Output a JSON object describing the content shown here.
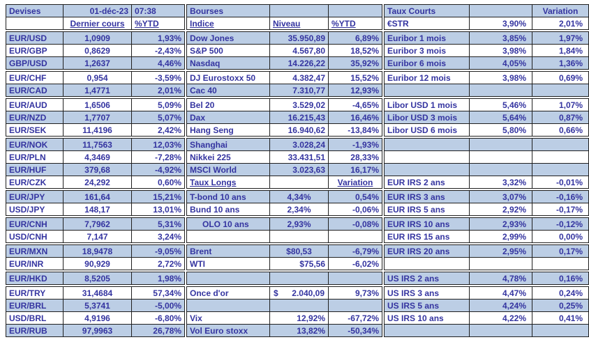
{
  "colors": {
    "shaded_row": "#BCCEE5",
    "text": "#3434A0",
    "border": "#1F1F1F",
    "background": "#FFFFFF"
  },
  "row_group_starts": [
    3,
    6,
    8,
    11,
    15,
    17,
    19,
    21,
    22
  ],
  "tables": {
    "devises": {
      "header": {
        "title": "Devises",
        "date": "01-déc-23",
        "time": "07:38",
        "value_col": "Dernier cours",
        "ytd_col": "%YTD"
      },
      "rows": [
        [
          "EUR/USD",
          "1,0909",
          "1,93%"
        ],
        [
          "EUR/GBP",
          "0,8629",
          "-2,43%"
        ],
        [
          "GBP/USD",
          "1,2637",
          "4,46%"
        ],
        [
          "EUR/CHF",
          "0,954",
          "-3,59%"
        ],
        [
          "EUR/CAD",
          "1,4771",
          "2,01%"
        ],
        [
          "EUR/AUD",
          "1,6506",
          "5,09%"
        ],
        [
          "EUR/NZD",
          "1,7707",
          "5,07%"
        ],
        [
          "EUR/SEK",
          "11,4196",
          "2,42%"
        ],
        [
          "EUR/NOK",
          "11,7563",
          "12,03%"
        ],
        [
          "EUR/PLN",
          "4,3469",
          "-7,28%"
        ],
        [
          "EUR/HUF",
          "379,68",
          "-4,92%"
        ],
        [
          "EUR/CZK",
          "24,292",
          "0,60%"
        ],
        [
          "EUR/JPY",
          "161,64",
          "15,21%"
        ],
        [
          "USD/JPY",
          "148,17",
          "13,01%"
        ],
        [
          "EUR/CNH",
          "7,7962",
          "5,31%"
        ],
        [
          "USD/CNH",
          "7,147",
          "3,24%"
        ],
        [
          "EUR/MXN",
          "18,9478",
          "-9,05%"
        ],
        [
          "EUR/INR",
          "90,929",
          "2,72%"
        ],
        [
          "EUR/HKD",
          "8,5205",
          "1,98%"
        ],
        [
          "EUR/TRY",
          "31,4684",
          "57,34%"
        ],
        [
          "EUR/BRL",
          "5,3741",
          "-5,00%"
        ],
        [
          "USD/BRL",
          "4,9196",
          "-6,80%"
        ],
        [
          "EUR/RUB",
          "97,9963",
          "26,78%"
        ]
      ]
    },
    "bourses": {
      "header": {
        "title": "Bourses",
        "label_col": "Indice",
        "value_col": "Niveau",
        "ytd_col": "%YTD"
      },
      "rows": [
        {
          "l": "Dow Jones",
          "v": "35.950,89",
          "p": "6,89%"
        },
        {
          "l": "S&P 500",
          "v": "4.567,80",
          "p": "18,52%"
        },
        {
          "l": "Nasdaq",
          "v": "14.226,22",
          "p": "35,92%"
        },
        {
          "l": "DJ Eurostoxx 50",
          "v": "4.382,47",
          "p": "15,52%"
        },
        {
          "l": "Cac 40",
          "v": "7.310,77",
          "p": "12,93%"
        },
        {
          "l": "Bel 20",
          "v": "3.529,02",
          "p": "-4,65%"
        },
        {
          "l": "Dax",
          "v": "16.215,43",
          "p": "16,46%"
        },
        {
          "l": "Hang Seng",
          "v": "16.940,62",
          "p": "-13,84%"
        },
        {
          "l": "Shanghai",
          "v": "3.028,24",
          "p": "-1,93%"
        },
        {
          "l": "Nikkei 225",
          "v": "33.431,51",
          "p": "28,33%"
        },
        {
          "l": "MSCI World",
          "v": "3.023,63",
          "p": "16,17%"
        },
        {
          "sub": true,
          "l": "Taux Longs",
          "p": "Variation"
        },
        {
          "l": "T-bond 10 ans",
          "v": "4,34%",
          "p": "0,54%",
          "va": "c"
        },
        {
          "l": "Bund 10 ans",
          "v": "2,34%",
          "p": "-0,06%",
          "va": "c"
        },
        {
          "l": "OLO 10 ans",
          "v": "2,93%",
          "p": "-0,08%",
          "va": "c",
          "indent": true
        },
        {
          "blank": true
        },
        {
          "l": "Brent",
          "v": "$80,53",
          "p": "-6,79%",
          "va": "c"
        },
        {
          "l": "WTI",
          "v": "$75,56",
          "p": "-6,02%"
        },
        {
          "blank": true
        },
        {
          "l": "Once d'or",
          "cur": "$",
          "v": "2.040,09",
          "p": "9,73%",
          "acct": true
        },
        {
          "blank": true
        },
        {
          "l": "Vix",
          "v": "12,92%",
          "p": "-67,72%"
        },
        {
          "l": "Vol Euro stoxx",
          "v": "13,82%",
          "p": "-50,34%"
        }
      ]
    },
    "taux": {
      "header": {
        "title": "Taux Courts",
        "variation_col": "Variation"
      },
      "rows": [
        {
          "l": "€STR",
          "v": "3,90%",
          "p": "2,01%"
        },
        {
          "l": "Euribor 1 mois",
          "v": "3,85%",
          "p": "1,97%"
        },
        {
          "l": "Euribor 3 mois",
          "v": "3,98%",
          "p": "1,84%"
        },
        {
          "l": "Euribor 6 mois",
          "v": "4,05%",
          "p": "1,36%"
        },
        {
          "l": "Euribor 12 mois",
          "v": "3,98%",
          "p": "0,69%"
        },
        {
          "blank": true
        },
        {
          "l": "Libor USD 1 mois",
          "v": "5,46%",
          "p": "1,07%"
        },
        {
          "l": "Libor USD 3 mois",
          "v": "5,64%",
          "p": "0,87%"
        },
        {
          "l": "Libor USD 6 mois",
          "v": "5,80%",
          "p": "0,66%"
        },
        {
          "blank": true
        },
        {
          "blank": true
        },
        {
          "blank": true
        },
        {
          "l": "EUR IRS 2 ans",
          "v": "3,32%",
          "p": "-0,01%"
        },
        {
          "l": "EUR IRS 3 ans",
          "v": "3,07%",
          "p": "-0,16%"
        },
        {
          "l": "EUR IRS 5 ans",
          "v": "2,92%",
          "p": "-0,17%"
        },
        {
          "l": "EUR IRS 10 ans",
          "v": "2,93%",
          "p": "-0,12%"
        },
        {
          "l": "EUR IRS 15 ans",
          "v": "2,99%",
          "p": "0,00%"
        },
        {
          "l": "EUR IRS 20 ans",
          "v": "2,95%",
          "p": "0,17%"
        },
        {
          "blank": true
        },
        {
          "l": "US IRS 2 ans",
          "v": "4,78%",
          "p": "0,16%"
        },
        {
          "l": "US IRS 3 ans",
          "v": "4,47%",
          "p": "0,24%"
        },
        {
          "l": "US IRS 5 ans",
          "v": "4,24%",
          "p": "0,25%"
        },
        {
          "l": "US IRS 10 ans",
          "v": "4,22%",
          "p": "0,41%"
        },
        {
          "blank": true
        }
      ]
    }
  }
}
